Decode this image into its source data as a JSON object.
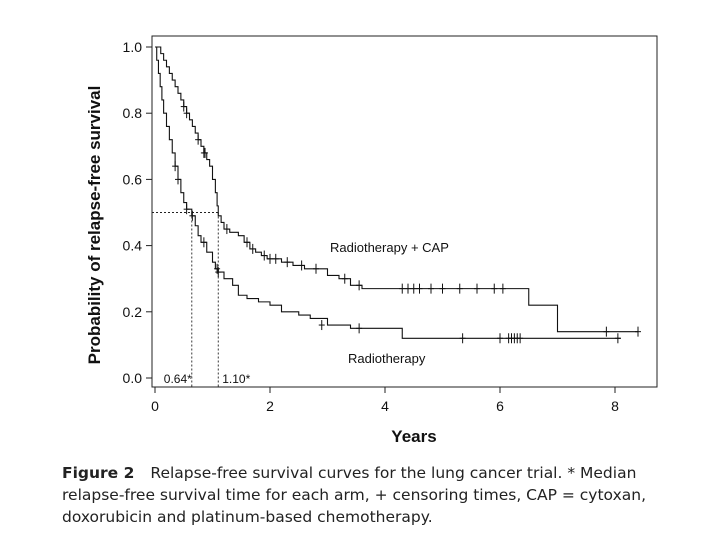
{
  "chart_data": {
    "type": "line",
    "subtype": "kaplan-meier-step",
    "xlabel": "Years",
    "ylabel": "Probability of relapse-free survival",
    "xlim": [
      0,
      8.6
    ],
    "ylim": [
      0,
      1.0
    ],
    "xticks": [
      0,
      2,
      4,
      6,
      8
    ],
    "xtick_labels": [
      "0",
      "2",
      "4",
      "6",
      "8"
    ],
    "yticks": [
      0,
      0.2,
      0.4,
      0.6,
      0.8,
      1.0
    ],
    "ytick_labels": [
      "0.0",
      "0.2",
      "0.4",
      "0.6",
      "0.8",
      "1.0"
    ],
    "grid": false,
    "median_level": 0.5,
    "series": [
      {
        "name": "Radiotherapy + CAP",
        "median": 1.1,
        "median_label": "1.10*",
        "steps": [
          [
            0,
            1.0
          ],
          [
            0.1,
            0.98
          ],
          [
            0.15,
            0.96
          ],
          [
            0.2,
            0.94
          ],
          [
            0.25,
            0.92
          ],
          [
            0.3,
            0.9
          ],
          [
            0.35,
            0.88
          ],
          [
            0.4,
            0.86
          ],
          [
            0.45,
            0.84
          ],
          [
            0.5,
            0.82
          ],
          [
            0.55,
            0.8
          ],
          [
            0.6,
            0.78
          ],
          [
            0.65,
            0.76
          ],
          [
            0.7,
            0.74
          ],
          [
            0.75,
            0.72
          ],
          [
            0.8,
            0.7
          ],
          [
            0.85,
            0.68
          ],
          [
            0.9,
            0.66
          ],
          [
            0.95,
            0.64
          ],
          [
            1.0,
            0.6
          ],
          [
            1.05,
            0.56
          ],
          [
            1.08,
            0.52
          ],
          [
            1.1,
            0.49
          ],
          [
            1.15,
            0.47
          ],
          [
            1.2,
            0.45
          ],
          [
            1.3,
            0.44
          ],
          [
            1.45,
            0.43
          ],
          [
            1.55,
            0.41
          ],
          [
            1.65,
            0.39
          ],
          [
            1.75,
            0.38
          ],
          [
            1.85,
            0.37
          ],
          [
            1.95,
            0.36
          ],
          [
            2.2,
            0.35
          ],
          [
            2.4,
            0.34
          ],
          [
            2.6,
            0.33
          ],
          [
            3.0,
            0.31
          ],
          [
            3.2,
            0.3
          ],
          [
            3.4,
            0.28
          ],
          [
            3.6,
            0.27
          ],
          [
            6.5,
            0.22
          ],
          [
            7.0,
            0.14
          ],
          [
            8.4,
            0.14
          ]
        ],
        "censored": [
          [
            0.5,
            0.82
          ],
          [
            0.55,
            0.8
          ],
          [
            0.75,
            0.72
          ],
          [
            0.85,
            0.68
          ],
          [
            0.87,
            0.68
          ],
          [
            1.25,
            0.45
          ],
          [
            1.6,
            0.41
          ],
          [
            1.7,
            0.39
          ],
          [
            1.9,
            0.37
          ],
          [
            2.0,
            0.36
          ],
          [
            2.1,
            0.36
          ],
          [
            2.3,
            0.35
          ],
          [
            2.55,
            0.34
          ],
          [
            2.8,
            0.33
          ],
          [
            3.3,
            0.3
          ],
          [
            3.55,
            0.28
          ],
          [
            4.3,
            0.27
          ],
          [
            4.4,
            0.27
          ],
          [
            4.5,
            0.27
          ],
          [
            4.6,
            0.27
          ],
          [
            4.8,
            0.27
          ],
          [
            5.0,
            0.27
          ],
          [
            5.3,
            0.27
          ],
          [
            5.6,
            0.27
          ],
          [
            5.9,
            0.27
          ],
          [
            6.05,
            0.27
          ],
          [
            7.85,
            0.14
          ],
          [
            8.4,
            0.14
          ]
        ]
      },
      {
        "name": "Radiotherapy",
        "median": 0.64,
        "median_label": "0.64*",
        "steps": [
          [
            0,
            1.0
          ],
          [
            0.03,
            0.96
          ],
          [
            0.06,
            0.92
          ],
          [
            0.09,
            0.88
          ],
          [
            0.12,
            0.84
          ],
          [
            0.15,
            0.8
          ],
          [
            0.2,
            0.76
          ],
          [
            0.25,
            0.72
          ],
          [
            0.3,
            0.68
          ],
          [
            0.35,
            0.64
          ],
          [
            0.4,
            0.6
          ],
          [
            0.45,
            0.56
          ],
          [
            0.5,
            0.53
          ],
          [
            0.55,
            0.51
          ],
          [
            0.64,
            0.49
          ],
          [
            0.7,
            0.46
          ],
          [
            0.75,
            0.43
          ],
          [
            0.8,
            0.41
          ],
          [
            0.9,
            0.38
          ],
          [
            1.0,
            0.35
          ],
          [
            1.05,
            0.33
          ],
          [
            1.1,
            0.32
          ],
          [
            1.2,
            0.3
          ],
          [
            1.35,
            0.28
          ],
          [
            1.45,
            0.25
          ],
          [
            1.6,
            0.24
          ],
          [
            1.8,
            0.23
          ],
          [
            2.0,
            0.22
          ],
          [
            2.2,
            0.2
          ],
          [
            2.5,
            0.19
          ],
          [
            2.7,
            0.18
          ],
          [
            3.0,
            0.16
          ],
          [
            3.4,
            0.15
          ],
          [
            4.3,
            0.12
          ],
          [
            8.1,
            0.12
          ]
        ],
        "censored": [
          [
            0.35,
            0.64
          ],
          [
            0.4,
            0.6
          ],
          [
            0.55,
            0.51
          ],
          [
            0.65,
            0.49
          ],
          [
            0.85,
            0.41
          ],
          [
            1.08,
            0.33
          ],
          [
            1.1,
            0.32
          ],
          [
            2.9,
            0.16
          ],
          [
            3.55,
            0.15
          ],
          [
            5.35,
            0.12
          ],
          [
            6.0,
            0.12
          ],
          [
            6.15,
            0.12
          ],
          [
            6.2,
            0.12
          ],
          [
            6.25,
            0.12
          ],
          [
            6.3,
            0.12
          ],
          [
            6.35,
            0.12
          ],
          [
            8.05,
            0.12
          ]
        ]
      }
    ]
  },
  "series_labels": {
    "combo": "Radiotherapy + CAP",
    "radio": "Radiotherapy"
  },
  "caption": {
    "figure_number": "Figure 2",
    "text": "Relapse-free survival curves for the lung cancer trial. * Median relapse-free survival time for each arm, + censoring times, CAP = cytoxan, doxorubicin and platinum-based chemotherapy."
  }
}
